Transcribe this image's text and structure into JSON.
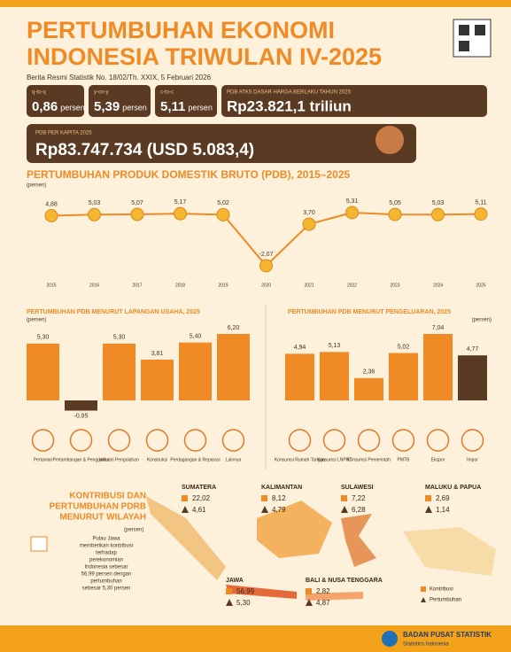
{
  "header": {
    "title_line1": "PERTUMBUHAN EKONOMI",
    "title_line2": "INDONESIA TRIWULAN IV-2025",
    "subtitle": "Berita Resmi Statistik No. 18/02/Th. XXIX, 5 Februari 2026"
  },
  "stats": [
    {
      "label": "q-to-q",
      "value": "0,86",
      "unit": "persen"
    },
    {
      "label": "y-on-y",
      "value": "5,39",
      "unit": "persen"
    },
    {
      "label": "c-to-c",
      "value": "5,11",
      "unit": "persen"
    },
    {
      "label": "PDB ATAS DASAR HARGA BERLAKU TAHUN 2025",
      "value": "Rp23.821,1 triliun"
    }
  ],
  "per_capita": {
    "label": "PDB PER KAPITA 2025",
    "value": "Rp83.747.734 (USD 5.083,4)"
  },
  "gdp_chart": {
    "type": "line",
    "title": "PERTUMBUHAN PRODUK DOMESTIK BRUTO (PDB), 2015–2025",
    "unit": "(persen)",
    "color": "#f08a24",
    "categories": [
      "2015",
      "2016",
      "2017",
      "2018",
      "2019",
      "2020",
      "2021",
      "2022",
      "2023",
      "2024",
      "2025"
    ],
    "values": [
      4.88,
      5.03,
      5.07,
      5.17,
      5.02,
      -2.07,
      3.7,
      5.31,
      5.05,
      5.03,
      5.11
    ],
    "value_labels": [
      "4,88",
      "5,03",
      "5,07",
      "5,17",
      "5,02",
      "-2,07",
      "3,70",
      "5,31",
      "5,05",
      "5,03",
      "5,11"
    ]
  },
  "sector_chart": {
    "type": "bar",
    "title": "PERTUMBUHAN PDB MENURUT LAPANGAN USAHA, 2025",
    "unit": "(persen)",
    "categories": [
      "Pertanian",
      "Pertambangan & Penggalian",
      "Industri Pengolahan",
      "Konstruksi",
      "Perdagangan & Reparasi",
      "Lainnya"
    ],
    "values": [
      5.3,
      -0.95,
      5.3,
      3.81,
      5.4,
      6.2
    ],
    "value_labels": [
      "5,30",
      "-0,95",
      "5,30",
      "3,81",
      "5,40",
      "6,20"
    ],
    "colors": [
      "#f08a24",
      "#5a3a22",
      "#f08a24",
      "#f08a24",
      "#f08a24",
      "#f08a24"
    ]
  },
  "expenditure_chart": {
    "type": "bar",
    "title": "PERTUMBUHAN PDB MENURUT PENGELUARAN, 2025",
    "unit": "(persen)",
    "categories": [
      "Konsumsi Rumah Tangga",
      "Konsumsi LNPRT",
      "Konsumsi Pemerintah",
      "PMTB",
      "Ekspor",
      "Impor"
    ],
    "values": [
      4.94,
      5.13,
      2.36,
      5.02,
      7.04,
      4.77
    ],
    "value_labels": [
      "4,94",
      "5,13",
      "2,36",
      "5,02",
      "7,04",
      "4,77"
    ],
    "colors": [
      "#f08a24",
      "#f08a24",
      "#f08a24",
      "#f08a24",
      "#f08a24",
      "#5a3a22"
    ]
  },
  "regions": {
    "title_line1": "KONTRIBUSI DAN",
    "title_line2": "PERTUMBUHAN PDRB",
    "title_line3": "MENURUT WILAYAH",
    "unit": "(persen)",
    "note": [
      "Pulau Jawa",
      "memberikan kontribusi",
      "terhadap",
      "perekonomian",
      "Indonesia sebesar",
      "56,99 persen dengan",
      "pertumbuhan",
      "sebesar 5,30 persen"
    ],
    "items": [
      {
        "name": "SUMATERA",
        "contribution": "22,02",
        "growth": "4,61"
      },
      {
        "name": "KALIMANTAN",
        "contribution": "8,12",
        "growth": "4,79"
      },
      {
        "name": "SULAWESI",
        "contribution": "7,22",
        "growth": "6,28"
      },
      {
        "name": "MALUKU & PAPUA",
        "contribution": "2,69",
        "growth": "1,14"
      },
      {
        "name": "JAWA",
        "contribution": "56,99",
        "growth": "5,30"
      },
      {
        "name": "BALI & NUSA TENGGARA",
        "contribution": "2,82",
        "growth": "4,87"
      }
    ],
    "legend": [
      "Kontribusi",
      "Pertumbuhan"
    ]
  },
  "footer": {
    "org": "BADAN PUSAT STATISTIK",
    "sub": "Statistics Indonesia"
  }
}
